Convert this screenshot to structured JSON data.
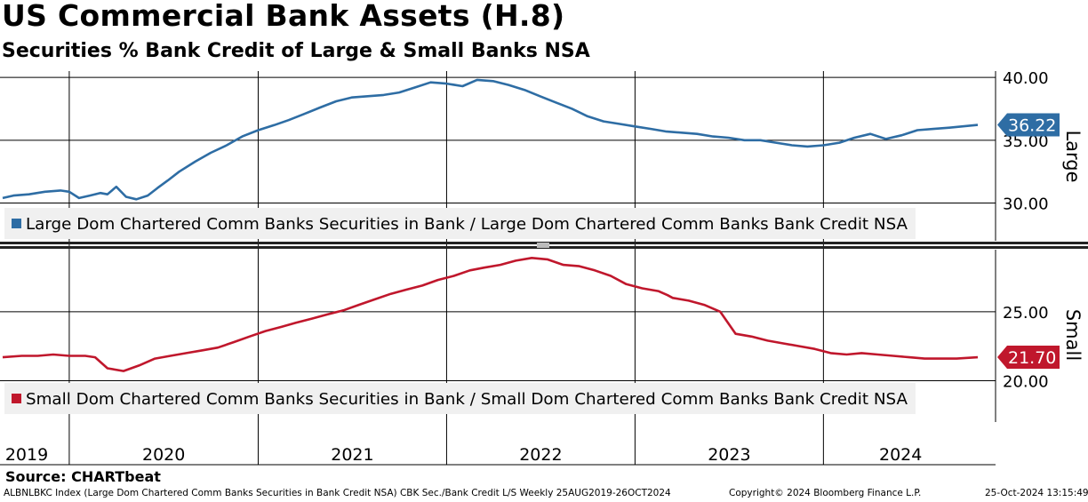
{
  "title": "US Commercial Bank Assets (H.8)",
  "subtitle": "Securities % Bank Credit of Large & Small Banks NSA",
  "source": "Source: CHARTbeat",
  "footer": {
    "index_info": "ALBNLBKC Index (Large Dom Chartered Comm Banks Securities in Bank Credit NSA) CBK Sec./Bank Credit L/S  Weekly 25AUG2019-26OCT2024",
    "copyright": "Copyright© 2024 Bloomberg Finance L.P.",
    "timestamp": "25-Oct-2024 13:15:49"
  },
  "chart_data": [
    {
      "type": "line",
      "panel": "Large",
      "panel_label": "Large",
      "color": "#2e6da4",
      "ylim": [
        27.0,
        40.5
      ],
      "yticks": [
        "30.00",
        "35.00",
        "40.00"
      ],
      "ytick_values": [
        30,
        35,
        40
      ],
      "last_value_label": "36.22",
      "series": [
        {
          "name": "Large Dom Chartered Comm Banks Securities in Bank / Large Dom Chartered Comm Banks Bank Credit NSA",
          "x": [
            "2019-08-25",
            "2019-09-15",
            "2019-10-15",
            "2019-11-15",
            "2019-12-15",
            "2020-01-01",
            "2020-01-20",
            "2020-02-10",
            "2020-03-01",
            "2020-03-15",
            "2020-04-01",
            "2020-04-20",
            "2020-05-10",
            "2020-06-01",
            "2020-06-20",
            "2020-07-10",
            "2020-08-01",
            "2020-09-01",
            "2020-10-01",
            "2020-11-01",
            "2020-12-01",
            "2021-01-01",
            "2021-02-01",
            "2021-03-01",
            "2021-04-01",
            "2021-05-01",
            "2021-06-01",
            "2021-07-01",
            "2021-08-01",
            "2021-09-01",
            "2021-10-01",
            "2021-11-01",
            "2021-12-01",
            "2022-01-01",
            "2022-02-01",
            "2022-03-01",
            "2022-04-01",
            "2022-05-01",
            "2022-06-01",
            "2022-07-01",
            "2022-08-01",
            "2022-09-01",
            "2022-10-01",
            "2022-11-01",
            "2022-12-01",
            "2023-01-01",
            "2023-02-01",
            "2023-03-01",
            "2023-04-01",
            "2023-05-01",
            "2023-06-01",
            "2023-07-01",
            "2023-08-01",
            "2023-09-01",
            "2023-10-01",
            "2023-11-01",
            "2023-12-01",
            "2024-01-01",
            "2024-02-01",
            "2024-03-01",
            "2024-04-01",
            "2024-05-01",
            "2024-06-01",
            "2024-07-01",
            "2024-08-01",
            "2024-09-01",
            "2024-10-26"
          ],
          "values": [
            30.4,
            30.6,
            30.7,
            30.9,
            31.0,
            30.9,
            30.4,
            30.6,
            30.8,
            30.7,
            31.3,
            30.5,
            30.3,
            30.6,
            31.2,
            31.8,
            32.5,
            33.3,
            34.0,
            34.6,
            35.3,
            35.8,
            36.2,
            36.6,
            37.1,
            37.6,
            38.1,
            38.4,
            38.5,
            38.6,
            38.8,
            39.2,
            39.6,
            39.5,
            39.3,
            39.8,
            39.7,
            39.4,
            39.0,
            38.5,
            38.0,
            37.5,
            36.9,
            36.5,
            36.3,
            36.1,
            35.9,
            35.7,
            35.6,
            35.5,
            35.3,
            35.2,
            35.0,
            35.0,
            34.8,
            34.6,
            34.5,
            34.6,
            34.8,
            35.2,
            35.5,
            35.1,
            35.4,
            35.8,
            35.9,
            36.0,
            36.22
          ]
        }
      ]
    },
    {
      "type": "line",
      "panel": "Small",
      "panel_label": "Small",
      "color": "#c0172c",
      "ylim": [
        17.0,
        29.5
      ],
      "yticks": [
        "20.00",
        "25.00"
      ],
      "ytick_values": [
        20,
        25
      ],
      "last_value_label": "21.70",
      "series": [
        {
          "name": "Small Dom Chartered Comm Banks Securities in Bank / Small Dom Chartered Comm Banks Bank Credit NSA",
          "x": [
            "2019-08-25",
            "2019-10-01",
            "2019-11-01",
            "2019-12-01",
            "2020-01-01",
            "2020-02-01",
            "2020-02-20",
            "2020-03-15",
            "2020-04-15",
            "2020-05-15",
            "2020-06-15",
            "2020-07-15",
            "2020-08-15",
            "2020-09-15",
            "2020-10-15",
            "2020-11-15",
            "2020-12-15",
            "2021-01-15",
            "2021-02-15",
            "2021-03-15",
            "2021-04-15",
            "2021-05-15",
            "2021-06-15",
            "2021-07-15",
            "2021-08-15",
            "2021-09-15",
            "2021-10-15",
            "2021-11-15",
            "2021-12-15",
            "2022-01-15",
            "2022-02-15",
            "2022-03-15",
            "2022-04-15",
            "2022-05-15",
            "2022-06-15",
            "2022-07-15",
            "2022-08-15",
            "2022-09-15",
            "2022-10-15",
            "2022-11-15",
            "2022-12-15",
            "2023-01-15",
            "2023-02-15",
            "2023-03-05",
            "2023-03-15",
            "2023-04-15",
            "2023-05-15",
            "2023-06-15",
            "2023-07-15",
            "2023-08-15",
            "2023-09-15",
            "2023-10-15",
            "2023-11-15",
            "2023-12-15",
            "2024-01-15",
            "2024-02-15",
            "2024-03-15",
            "2024-04-15",
            "2024-05-15",
            "2024-06-15",
            "2024-07-15",
            "2024-08-15",
            "2024-09-15",
            "2024-10-26"
          ],
          "values": [
            21.7,
            21.8,
            21.8,
            21.9,
            21.8,
            21.8,
            21.7,
            20.9,
            20.7,
            21.1,
            21.6,
            21.8,
            22.0,
            22.2,
            22.4,
            22.8,
            23.2,
            23.6,
            23.9,
            24.2,
            24.5,
            24.8,
            25.1,
            25.5,
            25.9,
            26.3,
            26.6,
            26.9,
            27.3,
            27.6,
            28.0,
            28.2,
            28.4,
            28.7,
            28.9,
            28.8,
            28.4,
            28.3,
            28.0,
            27.6,
            27.0,
            26.7,
            26.5,
            26.2,
            26.0,
            25.8,
            25.5,
            25.0,
            23.4,
            23.2,
            22.9,
            22.7,
            22.5,
            22.3,
            22.0,
            21.9,
            22.0,
            21.9,
            21.8,
            21.7,
            21.6,
            21.6,
            21.6,
            21.7
          ]
        }
      ]
    }
  ],
  "legend": {
    "large": "Large Dom Chartered Comm Banks Securities in Bank / Large Dom Chartered Comm Banks Bank Credit NSA",
    "small": "Small Dom Chartered Comm Banks Securities in Bank / Small Dom Chartered Comm Banks Bank Credit NSA"
  },
  "x_axis": {
    "start": "2019-08-25",
    "end": "2024-10-26",
    "year_labels": [
      "2019",
      "2020",
      "2021",
      "2022",
      "2023",
      "2024"
    ]
  }
}
